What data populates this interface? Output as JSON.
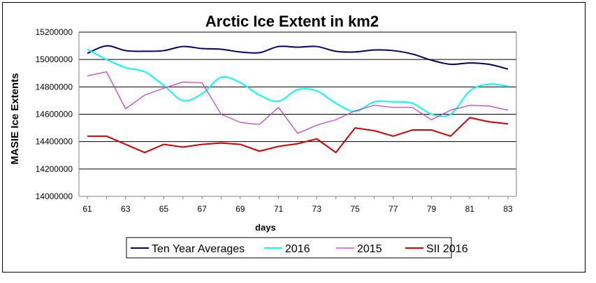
{
  "chart_data": {
    "type": "line",
    "title": "Arctic Ice Extent in km2",
    "xlabel": "days",
    "ylabel": "MASIE Ice Extents",
    "x": [
      61,
      62,
      63,
      64,
      65,
      66,
      67,
      68,
      69,
      70,
      71,
      72,
      73,
      74,
      75,
      76,
      77,
      78,
      79,
      80,
      81,
      82,
      83
    ],
    "xticks": [
      61,
      63,
      65,
      67,
      69,
      71,
      73,
      75,
      77,
      79,
      81,
      83
    ],
    "ylim": [
      14000000,
      15200000
    ],
    "yticks": [
      14000000,
      14200000,
      14400000,
      14600000,
      14800000,
      15000000,
      15200000
    ],
    "ytick_labels": [
      "14000000",
      "14200000",
      "14400000",
      "14600000",
      "14800000",
      "15000000",
      "15200000"
    ],
    "grid": true,
    "legend_position": "bottom",
    "series": [
      {
        "name": "Ten Year Averages",
        "color": "#000066",
        "smooth": true,
        "values": [
          15045000,
          15100000,
          15065000,
          15060000,
          15065000,
          15095000,
          15080000,
          15075000,
          15055000,
          15050000,
          15095000,
          15090000,
          15095000,
          15060000,
          15055000,
          15070000,
          15065000,
          15040000,
          14995000,
          14965000,
          14975000,
          14965000,
          14930000
        ]
      },
      {
        "name": "2016",
        "color": "#00ffff",
        "smooth": true,
        "values": [
          15075000,
          15000000,
          14940000,
          14910000,
          14810000,
          14700000,
          14750000,
          14870000,
          14830000,
          14740000,
          14695000,
          14780000,
          14770000,
          14680000,
          14620000,
          14690000,
          14690000,
          14680000,
          14600000,
          14600000,
          14770000,
          14820000,
          14805000
        ]
      },
      {
        "name": "2015",
        "color": "#cc33cc",
        "smooth": false,
        "values": [
          14880000,
          14910000,
          14640000,
          14740000,
          14790000,
          14835000,
          14830000,
          14600000,
          14540000,
          14525000,
          14650000,
          14460000,
          14520000,
          14560000,
          14625000,
          14665000,
          14650000,
          14650000,
          14560000,
          14630000,
          14665000,
          14660000,
          14630000
        ]
      },
      {
        "name": "SII 2016",
        "color": "#cc0000",
        "smooth": false,
        "values": [
          14440000,
          14440000,
          14380000,
          14320000,
          14380000,
          14360000,
          14380000,
          14390000,
          14380000,
          14330000,
          14365000,
          14385000,
          14420000,
          14320000,
          14500000,
          14480000,
          14440000,
          14485000,
          14485000,
          14440000,
          14575000,
          14545000,
          14530000
        ]
      }
    ]
  }
}
